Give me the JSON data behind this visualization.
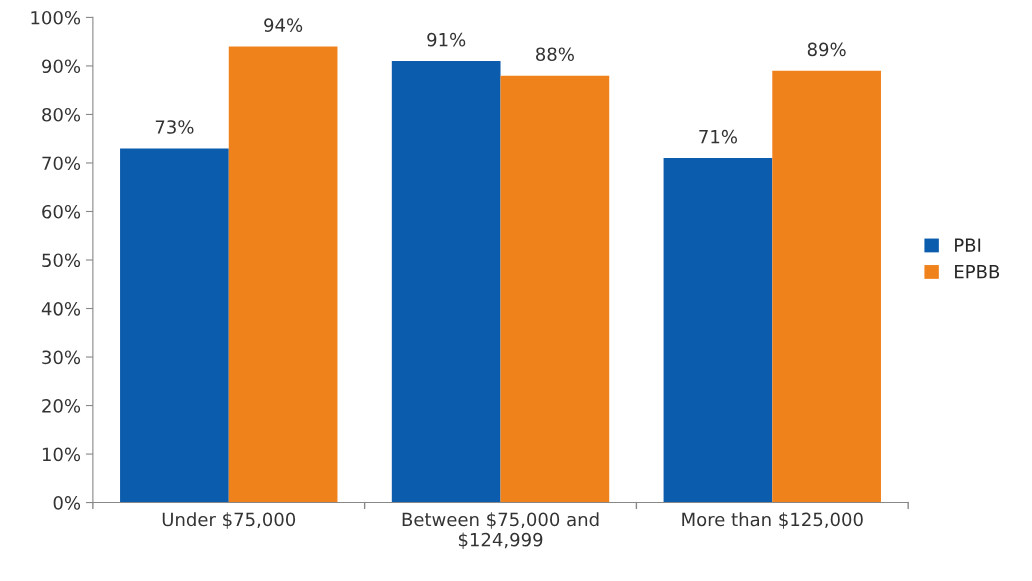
{
  "chart_data": {
    "type": "bar",
    "categories": [
      "Under $75,000",
      "Between $75,000 and\n$124,999",
      "More than $125,000"
    ],
    "series": [
      {
        "name": "PBI",
        "color": "#0b5cad",
        "values": [
          73,
          91,
          71
        ],
        "value_labels": [
          "73%",
          "91%",
          "71%"
        ]
      },
      {
        "name": "EPBB",
        "color": "#f0821c",
        "values": [
          94,
          88,
          89
        ],
        "value_labels": [
          "94%",
          "88%",
          "89%"
        ]
      }
    ],
    "ylim": [
      0,
      100
    ],
    "yticks": [
      {
        "value": 0,
        "label": "0%"
      },
      {
        "value": 10,
        "label": "10%"
      },
      {
        "value": 20,
        "label": "20%"
      },
      {
        "value": 30,
        "label": "30%"
      },
      {
        "value": 40,
        "label": "40%"
      },
      {
        "value": 50,
        "label": "50%"
      },
      {
        "value": 60,
        "label": "60%"
      },
      {
        "value": 70,
        "label": "70%"
      },
      {
        "value": 80,
        "label": "80%"
      },
      {
        "value": 90,
        "label": "90%"
      },
      {
        "value": 100,
        "label": "100%"
      }
    ],
    "grid": false,
    "legend": "right"
  }
}
